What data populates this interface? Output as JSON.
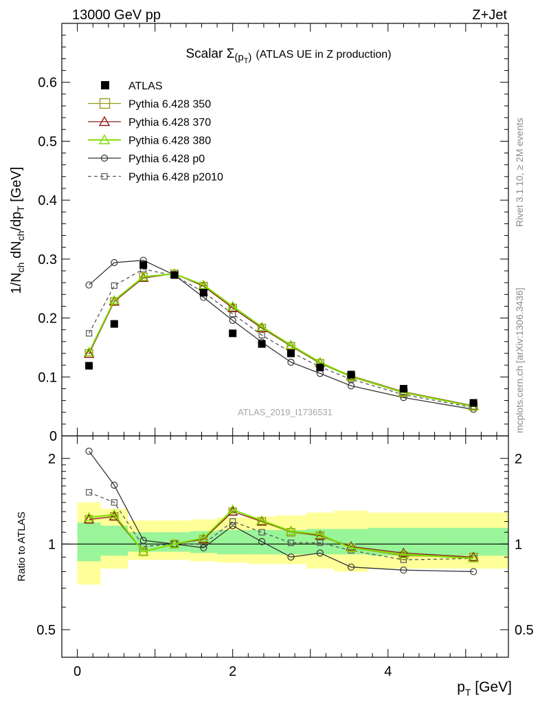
{
  "header": {
    "energy_label": "13000 GeV pp",
    "process_label": "Z+Jet"
  },
  "side_labels": {
    "rivet": "Rivet 3.1.10, ≥ 2M events",
    "mcplots": "mcplots.cern.ch [arXiv:1306.3436]"
  },
  "analysis_id": "ATLAS_2019_I1736531",
  "colors": {
    "atlas": "#000000",
    "p350": "#99991a",
    "p370": "#8b1a1a",
    "p380": "#7fdd00",
    "p0": "#333333",
    "p2010": "#555555",
    "band_green": "#99f599",
    "band_yellow": "#ffff99"
  },
  "chart_data": [
    {
      "type": "scatter",
      "panel": "main",
      "title_prefix": "Scalar Σ",
      "title_sub": "(p",
      "title_subsub": "T",
      "title_close": ")",
      "title_suffix": "(ATLAS UE in Z production)",
      "ylabel": "1/N_ch dN_ch/dp_T [GeV]",
      "ylim": [
        0,
        0.7
      ],
      "xlim": [
        -0.2,
        5.55
      ],
      "y_ticks": [
        0,
        0.1,
        0.2,
        0.3,
        0.4,
        0.5,
        0.6
      ],
      "y_tick_labels": [
        "0",
        "0.1",
        "0.2",
        "0.3",
        "0.4",
        "0.5",
        "0.6"
      ],
      "legend_position": "top-left",
      "x": [
        0.15,
        0.475,
        0.85,
        1.25,
        1.625,
        2.0,
        2.375,
        2.75,
        3.125,
        3.525,
        4.2,
        5.1
      ],
      "series": [
        {
          "key": "atlas",
          "name": "ATLAS",
          "marker": "filled-square",
          "line": "none",
          "values": [
            0.119,
            0.19,
            0.29,
            0.273,
            0.243,
            0.174,
            0.156,
            0.14,
            0.116,
            0.104,
            0.08,
            0.056
          ]
        },
        {
          "key": "p350",
          "name": "Pythia 6.428 350",
          "marker": "open-square",
          "line": "solid",
          "values": [
            0.14,
            0.228,
            0.27,
            0.275,
            0.254,
            0.217,
            0.183,
            0.152,
            0.123,
            0.1,
            0.073,
            0.05
          ]
        },
        {
          "key": "p370",
          "name": "Pythia 6.428 370",
          "marker": "open-triangle",
          "line": "solid",
          "values": [
            0.139,
            0.228,
            0.268,
            0.275,
            0.254,
            0.217,
            0.183,
            0.153,
            0.124,
            0.102,
            0.075,
            0.051
          ]
        },
        {
          "key": "p380",
          "name": "Pythia 6.428 380",
          "marker": "open-triangle",
          "line": "solid",
          "values": [
            0.142,
            0.23,
            0.27,
            0.275,
            0.256,
            0.22,
            0.185,
            0.154,
            0.125,
            0.101,
            0.074,
            0.05
          ]
        },
        {
          "key": "p0",
          "name": "Pythia 6.428 p0",
          "marker": "open-circle",
          "line": "solid",
          "values": [
            0.256,
            0.294,
            0.298,
            0.273,
            0.235,
            0.196,
            0.159,
            0.125,
            0.106,
            0.085,
            0.065,
            0.045
          ]
        },
        {
          "key": "p2010",
          "name": "Pythia 6.428 p2010",
          "marker": "open-square-small",
          "line": "dashed",
          "values": [
            0.174,
            0.255,
            0.283,
            0.272,
            0.244,
            0.207,
            0.171,
            0.142,
            0.117,
            0.096,
            0.07,
            0.048
          ]
        }
      ]
    },
    {
      "type": "scatter",
      "panel": "ratio",
      "ylabel": "Ratio to ATLAS",
      "xlabel": "p_T [GeV]",
      "ylim": [
        0.4,
        2.4
      ],
      "yscale": "log",
      "xlim": [
        -0.2,
        5.55
      ],
      "x_ticks": [
        0,
        2,
        4
      ],
      "x_tick_labels": [
        "0",
        "2",
        "4"
      ],
      "y_ticks": [
        0.5,
        1,
        2
      ],
      "y_tick_labels": [
        "0.5",
        "1",
        "2"
      ],
      "reference_line": 1,
      "x": [
        0.15,
        0.475,
        0.85,
        1.25,
        1.625,
        2.0,
        2.375,
        2.75,
        3.125,
        3.525,
        4.2,
        5.1
      ],
      "bands": {
        "edges": [
          0,
          0.3,
          0.65,
          1.05,
          1.45,
          1.8,
          2.2,
          2.55,
          2.95,
          3.3,
          3.75,
          4.65,
          5.55
        ],
        "green_low": [
          0.87,
          0.91,
          0.94,
          0.94,
          0.93,
          0.92,
          0.92,
          0.92,
          0.92,
          0.92,
          0.91,
          0.91
        ],
        "green_high": [
          1.19,
          1.16,
          1.1,
          1.1,
          1.11,
          1.12,
          1.12,
          1.12,
          1.13,
          1.13,
          1.14,
          1.14
        ],
        "yellow_low": [
          0.72,
          0.82,
          0.88,
          0.88,
          0.87,
          0.86,
          0.85,
          0.85,
          0.82,
          0.8,
          0.82,
          0.82
        ],
        "yellow_high": [
          1.4,
          1.33,
          1.21,
          1.21,
          1.22,
          1.24,
          1.25,
          1.26,
          1.29,
          1.31,
          1.29,
          1.29
        ]
      },
      "series": [
        {
          "key": "p350",
          "name": "Pythia 6.428 350",
          "marker": "open-square",
          "line": "solid",
          "values": [
            1.22,
            1.25,
            0.94,
            1.0,
            1.04,
            1.3,
            1.2,
            1.1,
            1.07,
            0.97,
            0.91,
            0.9
          ]
        },
        {
          "key": "p370",
          "name": "Pythia 6.428 370",
          "marker": "open-triangle",
          "line": "solid",
          "values": [
            1.22,
            1.25,
            0.94,
            1.0,
            1.04,
            1.3,
            1.2,
            1.11,
            1.07,
            0.98,
            0.93,
            0.9
          ]
        },
        {
          "key": "p380",
          "name": "Pythia 6.428 380",
          "marker": "open-triangle",
          "line": "solid",
          "values": [
            1.24,
            1.27,
            0.94,
            1.0,
            1.05,
            1.32,
            1.21,
            1.11,
            1.08,
            0.97,
            0.92,
            0.89
          ]
        },
        {
          "key": "p0",
          "name": "Pythia 6.428 p0",
          "marker": "open-circle",
          "line": "solid",
          "values": [
            2.12,
            1.61,
            1.03,
            1.0,
            0.97,
            1.16,
            1.02,
            0.9,
            0.93,
            0.83,
            0.81,
            0.8
          ]
        },
        {
          "key": "p2010",
          "name": "Pythia 6.428 p2010",
          "marker": "open-square-small",
          "line": "dashed",
          "values": [
            1.52,
            1.4,
            0.98,
            1.0,
            1.0,
            1.2,
            1.1,
            1.01,
            1.01,
            0.95,
            0.88,
            0.89
          ]
        }
      ]
    }
  ]
}
